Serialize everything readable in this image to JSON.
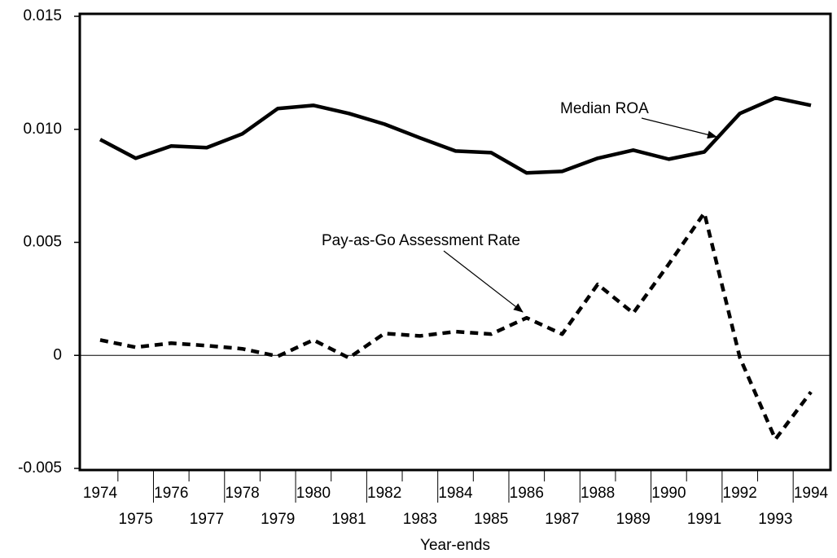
{
  "chart_data": {
    "type": "line",
    "x_label": "Year-ends",
    "x": [
      1974,
      1975,
      1976,
      1977,
      1978,
      1979,
      1980,
      1981,
      1982,
      1983,
      1984,
      1985,
      1986,
      1987,
      1988,
      1989,
      1990,
      1991,
      1992,
      1993,
      1994
    ],
    "xlim": [
      1974,
      1994
    ],
    "xticks": [
      1974,
      1975,
      1976,
      1977,
      1978,
      1979,
      1980,
      1981,
      1982,
      1983,
      1984,
      1985,
      1986,
      1987,
      1988,
      1989,
      1990,
      1991,
      1992,
      1993,
      1994
    ],
    "ylim": [
      -0.005,
      0.015
    ],
    "yticks": [
      {
        "value": -0.005,
        "label": "-0.005"
      },
      0,
      {
        "value": 0.005,
        "label": "0.005"
      },
      {
        "value": 0.01,
        "label": "0.010"
      },
      {
        "value": 0.015,
        "label": "0.015"
      }
    ],
    "zero_line": true,
    "series": [
      {
        "name": "Median ROA",
        "color": "#000000",
        "line_style": "solid",
        "values": [
          0.00955,
          0.00872,
          0.00926,
          0.00919,
          0.0098,
          0.01092,
          0.01106,
          0.0107,
          0.01023,
          0.00962,
          0.00904,
          0.00897,
          0.00807,
          0.00814,
          0.00872,
          0.00908,
          0.00868,
          0.009,
          0.0107,
          0.01139,
          0.01106
        ]
      },
      {
        "name": "Pay-as-Go Assessment Rate",
        "color": "#000000",
        "line_style": "dashed",
        "values": [
          0.00068,
          0.00036,
          0.00054,
          0.00043,
          0.00029,
          -4e-05,
          0.00068,
          -0.00011,
          0.00097,
          0.00086,
          0.00105,
          0.00094,
          0.00166,
          0.00094,
          0.00314,
          0.00187,
          0.00404,
          0.0063,
          -0.0001,
          -0.00371,
          -0.00162
        ]
      }
    ]
  }
}
